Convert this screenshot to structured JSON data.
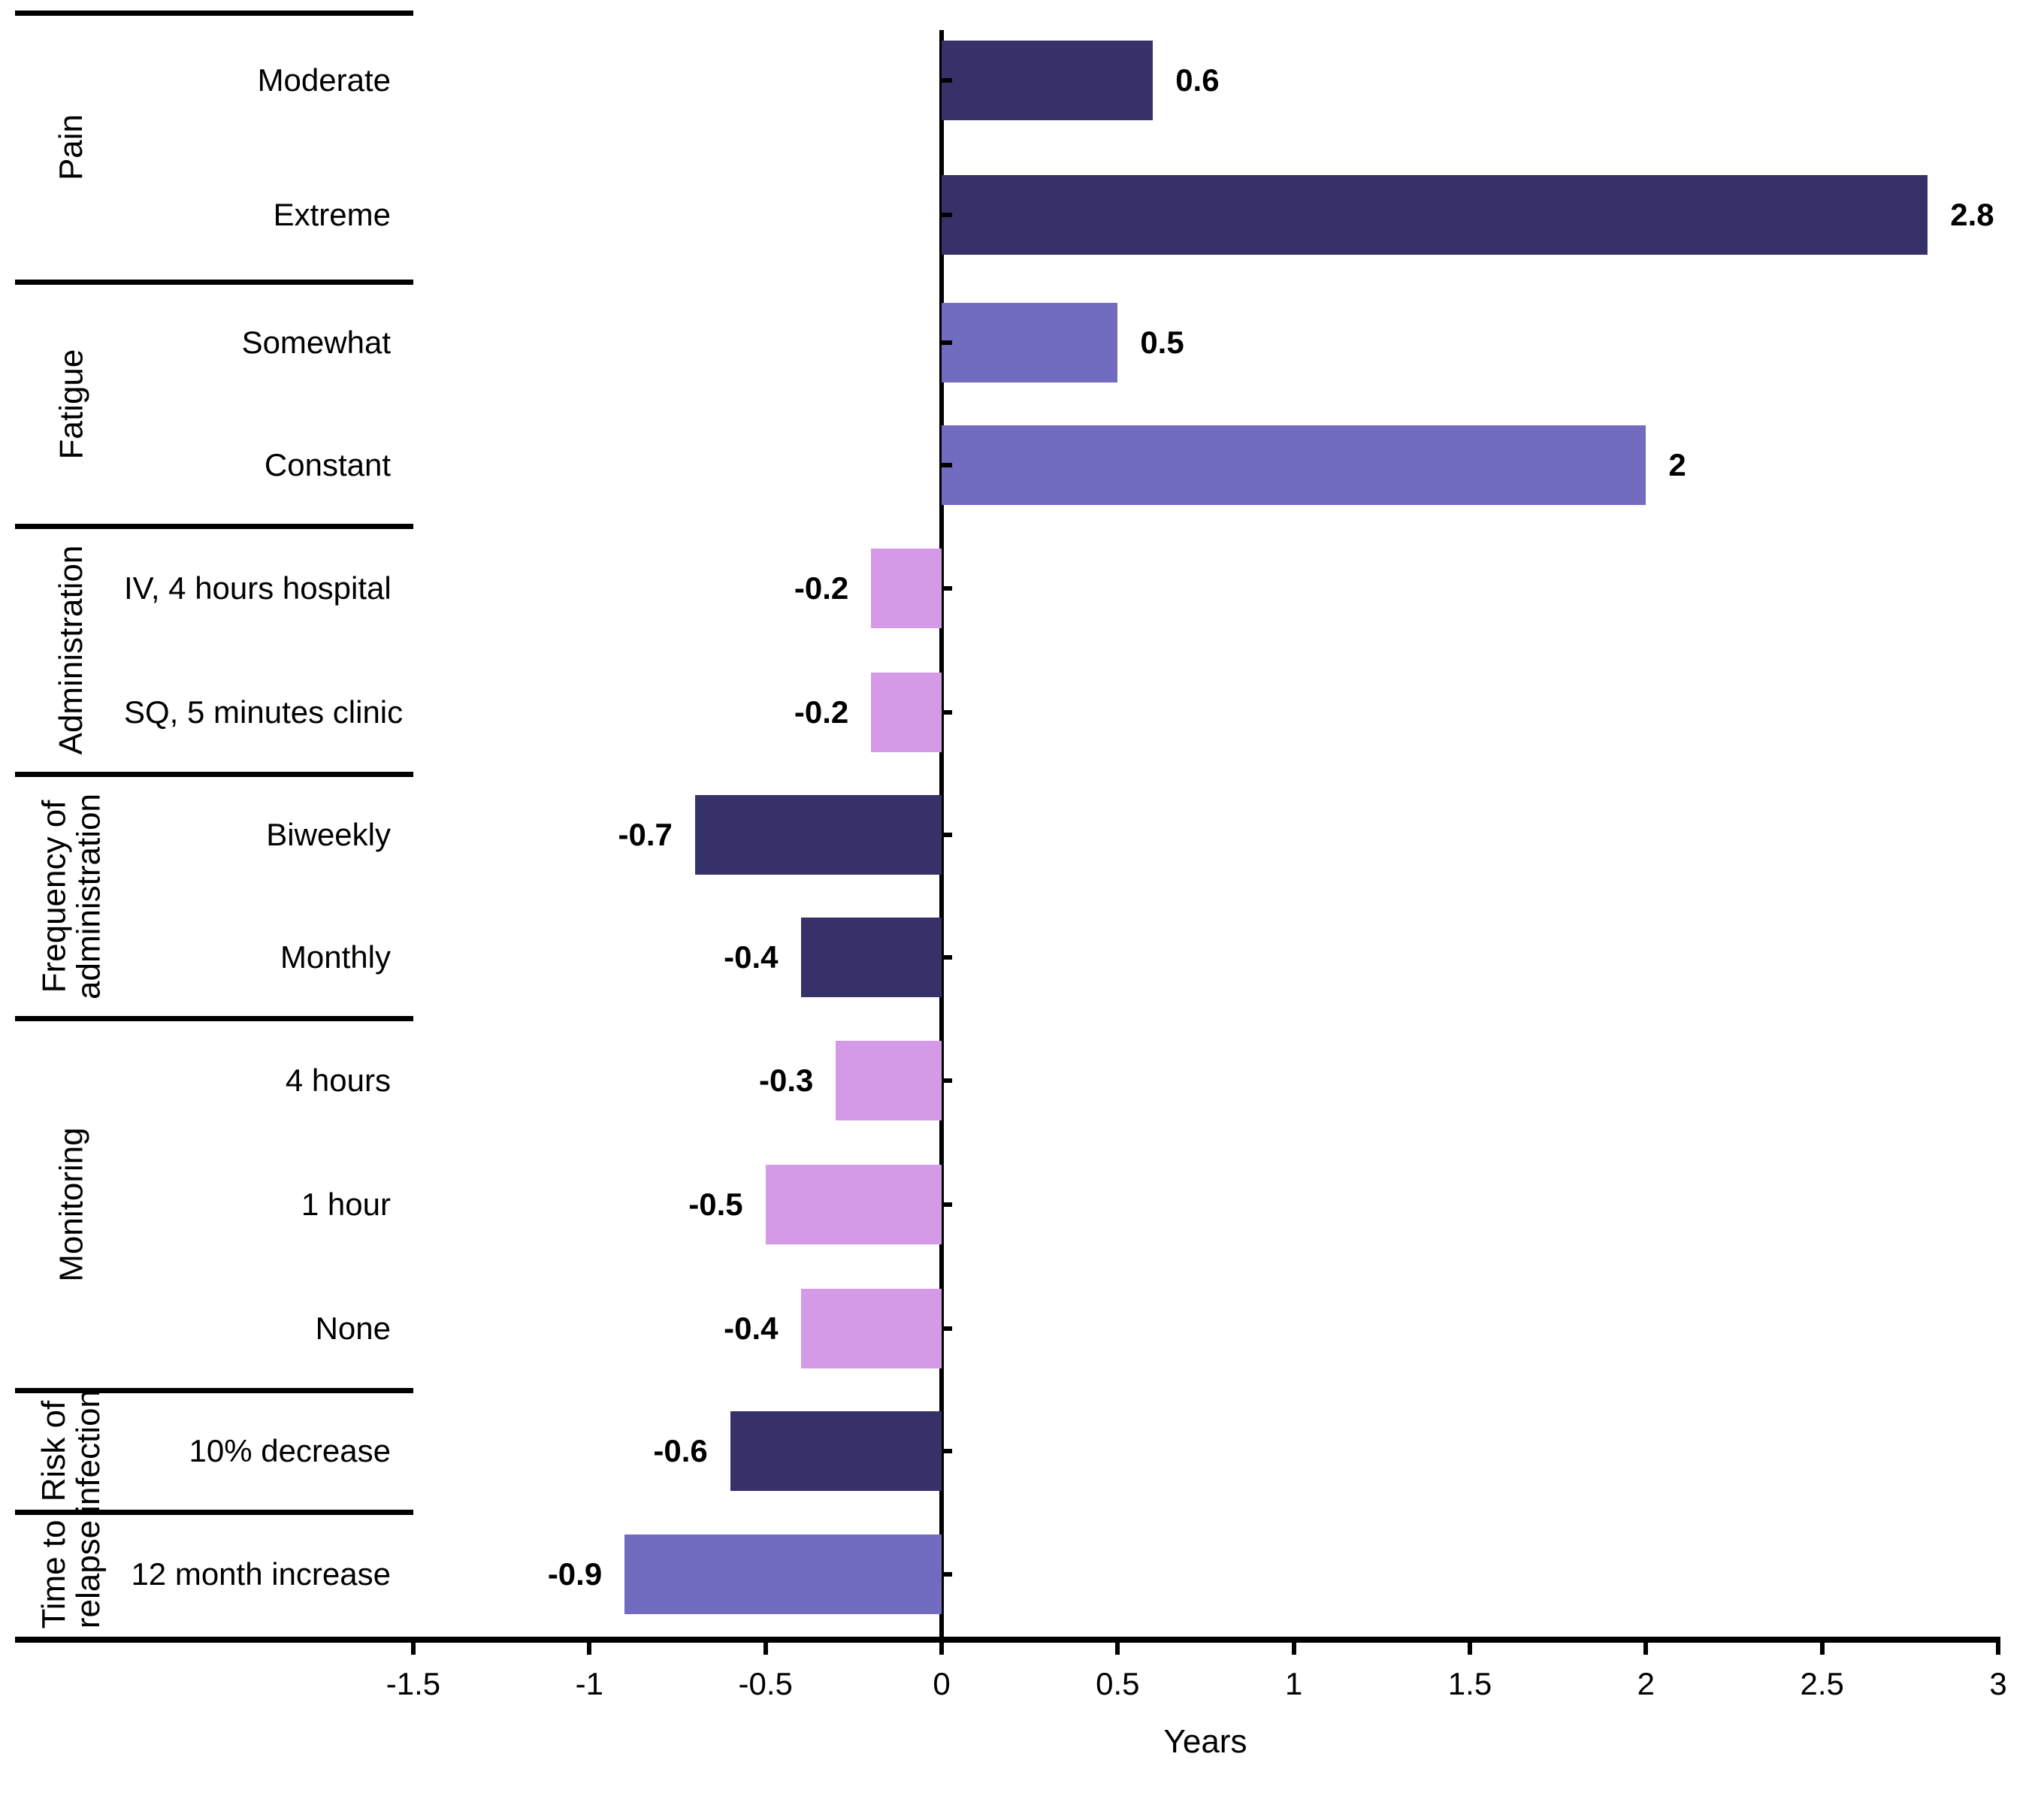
{
  "chart_data": {
    "type": "bar",
    "orientation": "horizontal",
    "title": "",
    "xlabel": "Years",
    "ylabel": "",
    "xlim": [
      -1.5,
      3
    ],
    "grid": false,
    "legend": "none",
    "x_ticks": [
      {
        "value": -1.5,
        "label": "-1.5"
      },
      {
        "value": -1,
        "label": "-1"
      },
      {
        "value": -0.5,
        "label": "-0.5"
      },
      {
        "value": 0,
        "label": "0"
      },
      {
        "value": 0.5,
        "label": "0.5"
      },
      {
        "value": 1,
        "label": "1"
      },
      {
        "value": 1.5,
        "label": "1.5"
      },
      {
        "value": 2,
        "label": "2"
      },
      {
        "value": 2.5,
        "label": "2.5"
      },
      {
        "value": 3,
        "label": "3"
      }
    ],
    "groups": [
      {
        "name": "Pain",
        "color": "#37316A",
        "items": [
          {
            "label": "Moderate",
            "value": 0.6,
            "value_label": "0.6"
          },
          {
            "label": "Extreme",
            "value": 2.8,
            "value_label": "2.8"
          }
        ]
      },
      {
        "name": "Fatigue",
        "color": "#716CC0",
        "items": [
          {
            "label": "Somewhat",
            "value": 0.5,
            "value_label": "0.5"
          },
          {
            "label": "Constant",
            "value": 2,
            "value_label": "2"
          }
        ]
      },
      {
        "name": "Administration",
        "color": "#D49AE8",
        "items": [
          {
            "label": "IV, 4 hours hospital",
            "value": -0.2,
            "value_label": "-0.2"
          },
          {
            "label": "SQ, 5 minutes clinic",
            "value": -0.2,
            "value_label": "-0.2"
          }
        ]
      },
      {
        "name": "Frequency of\nadministration",
        "color": "#37316A",
        "items": [
          {
            "label": "Biweekly",
            "value": -0.7,
            "value_label": "-0.7"
          },
          {
            "label": "Monthly",
            "value": -0.4,
            "value_label": "-0.4"
          }
        ]
      },
      {
        "name": "Monitoring",
        "color": "#D49AE8",
        "items": [
          {
            "label": "4 hours",
            "value": -0.3,
            "value_label": "-0.3"
          },
          {
            "label": "1 hour",
            "value": -0.5,
            "value_label": "-0.5"
          },
          {
            "label": "None",
            "value": -0.4,
            "value_label": "-0.4"
          }
        ]
      },
      {
        "name": "Risk of\ninfection",
        "color": "#37316A",
        "items": [
          {
            "label": "10% decrease",
            "value": -0.6,
            "value_label": "-0.6"
          }
        ]
      },
      {
        "name": "Time to\nrelapse",
        "color": "#716CC0",
        "items": [
          {
            "label": "12 month increase",
            "value": -0.9,
            "value_label": "-0.9"
          }
        ]
      }
    ]
  },
  "colors": {
    "dark_navy": "#37316A",
    "medium_purple": "#716CC0",
    "light_lilac": "#D49AE8",
    "axis": "#000000",
    "background": "#ffffff"
  }
}
